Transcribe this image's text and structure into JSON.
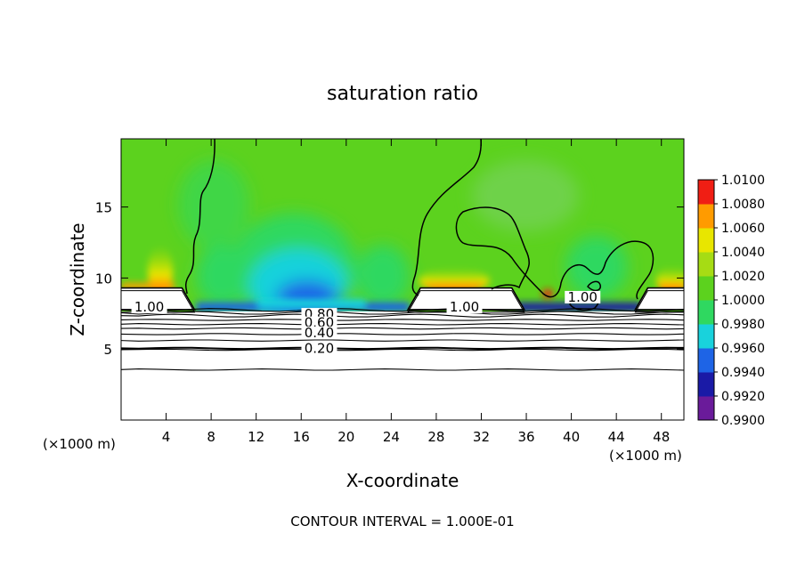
{
  "chart_data": {
    "type": "heatmap",
    "title": "saturation ratio",
    "xlabel": "X-coordinate",
    "ylabel": "Z-coordinate",
    "x_unit_left": "(×1000 m)",
    "x_unit_right": "(×1000 m)",
    "footer": "CONTOUR INTERVAL = 1.000E-01",
    "xlim": [
      0,
      50
    ],
    "ylim": [
      0,
      19.8
    ],
    "xticks": [
      4,
      8,
      12,
      16,
      20,
      24,
      28,
      32,
      36,
      40,
      44,
      48
    ],
    "yticks": [
      5,
      10,
      15
    ],
    "colorbar": {
      "levels": [
        0.99,
        0.992,
        0.994,
        0.996,
        0.998,
        1.0,
        1.002,
        1.004,
        1.006,
        1.008,
        1.01
      ],
      "labels": [
        "0.9900",
        "0.9920",
        "0.9940",
        "0.9960",
        "0.9980",
        "1.0000",
        "1.0020",
        "1.0040",
        "1.0060",
        "1.0080",
        "1.0100"
      ],
      "colors": [
        "#6a1b9a",
        "#1a1aa6",
        "#1e64e6",
        "#19d2dc",
        "#2fd860",
        "#5cd21e",
        "#a6dc14",
        "#e8e600",
        "#ff9b00",
        "#f01e14",
        "#f08a8a"
      ]
    },
    "contour_labels": [
      {
        "text": "1.00",
        "x": 2.5,
        "y": 7.7
      },
      {
        "text": "1.00",
        "x": 30.5,
        "y": 7.7
      },
      {
        "text": "0.80",
        "x": 17.6,
        "y": 7.2
      },
      {
        "text": "0.60",
        "x": 17.6,
        "y": 6.6
      },
      {
        "text": "0.40",
        "x": 17.6,
        "y": 5.9
      },
      {
        "text": "0.20",
        "x": 17.6,
        "y": 4.8
      },
      {
        "text": "1.00",
        "x": 41.0,
        "y": 8.4
      }
    ],
    "iso_lines_y": [
      7.75,
      7.55,
      7.35,
      7.05,
      6.75,
      6.45,
      6.05,
      5.6,
      5.05,
      4.95,
      3.55
    ],
    "clear_regions": [
      {
        "x0": 0,
        "x1": 6.2,
        "top": 9.3
      },
      {
        "x0": 25.8,
        "x1": 35.5,
        "top": 9.3
      },
      {
        "x0": 46.0,
        "x1": 50,
        "top": 9.3
      }
    ]
  }
}
